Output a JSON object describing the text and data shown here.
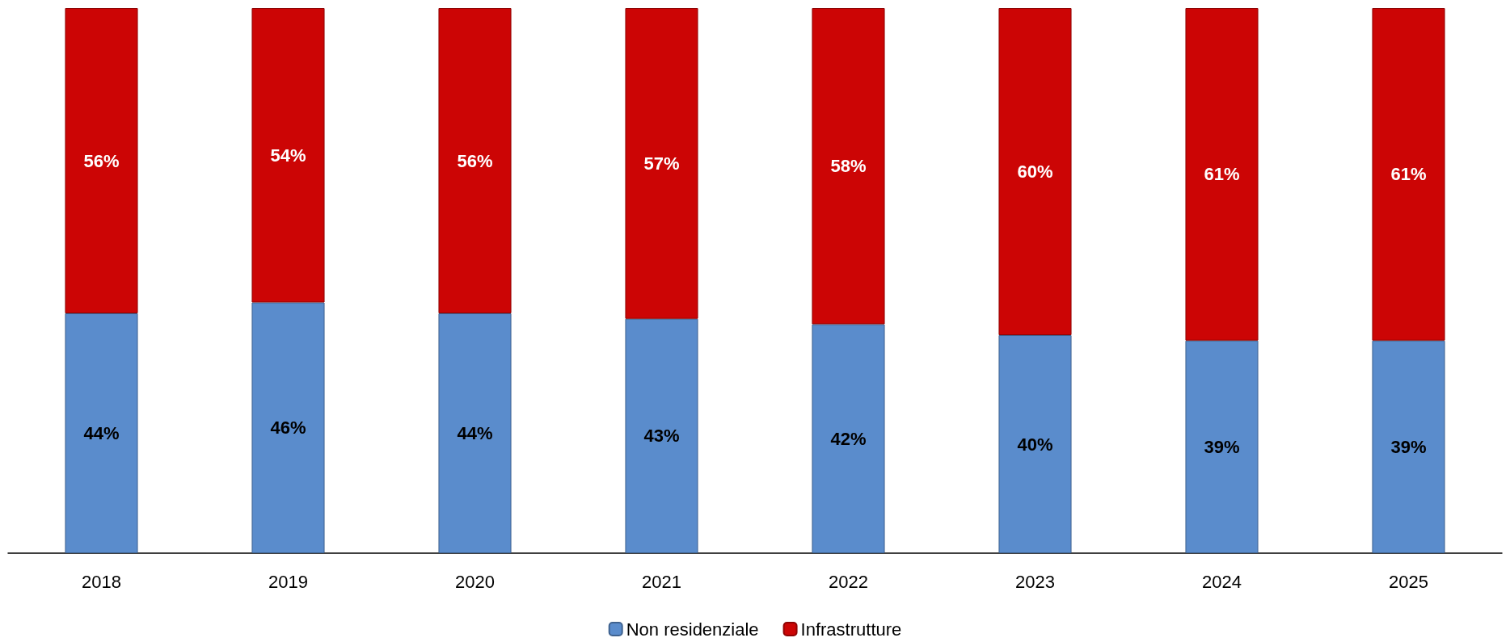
{
  "chart_data": {
    "type": "bar",
    "stacked": true,
    "legend": "bottom",
    "tick_labels": "x",
    "categories": [
      "2018",
      "2019",
      "2020",
      "2021",
      "2022",
      "2023",
      "2024",
      "2025"
    ],
    "series": [
      {
        "name": "Non residenziale",
        "color": "#5a8ccc",
        "values": [
          44,
          46,
          44,
          43,
          42,
          40,
          39,
          39
        ],
        "value_labels": [
          "44%",
          "46%",
          "44%",
          "43%",
          "42%",
          "40%",
          "39%",
          "39%"
        ]
      },
      {
        "name": "Infrastrutture",
        "color": "#cc0505",
        "values": [
          56,
          54,
          56,
          57,
          58,
          60,
          61,
          61
        ],
        "value_labels": [
          "56%",
          "54%",
          "56%",
          "57%",
          "58%",
          "60%",
          "61%",
          "61%"
        ]
      }
    ]
  }
}
